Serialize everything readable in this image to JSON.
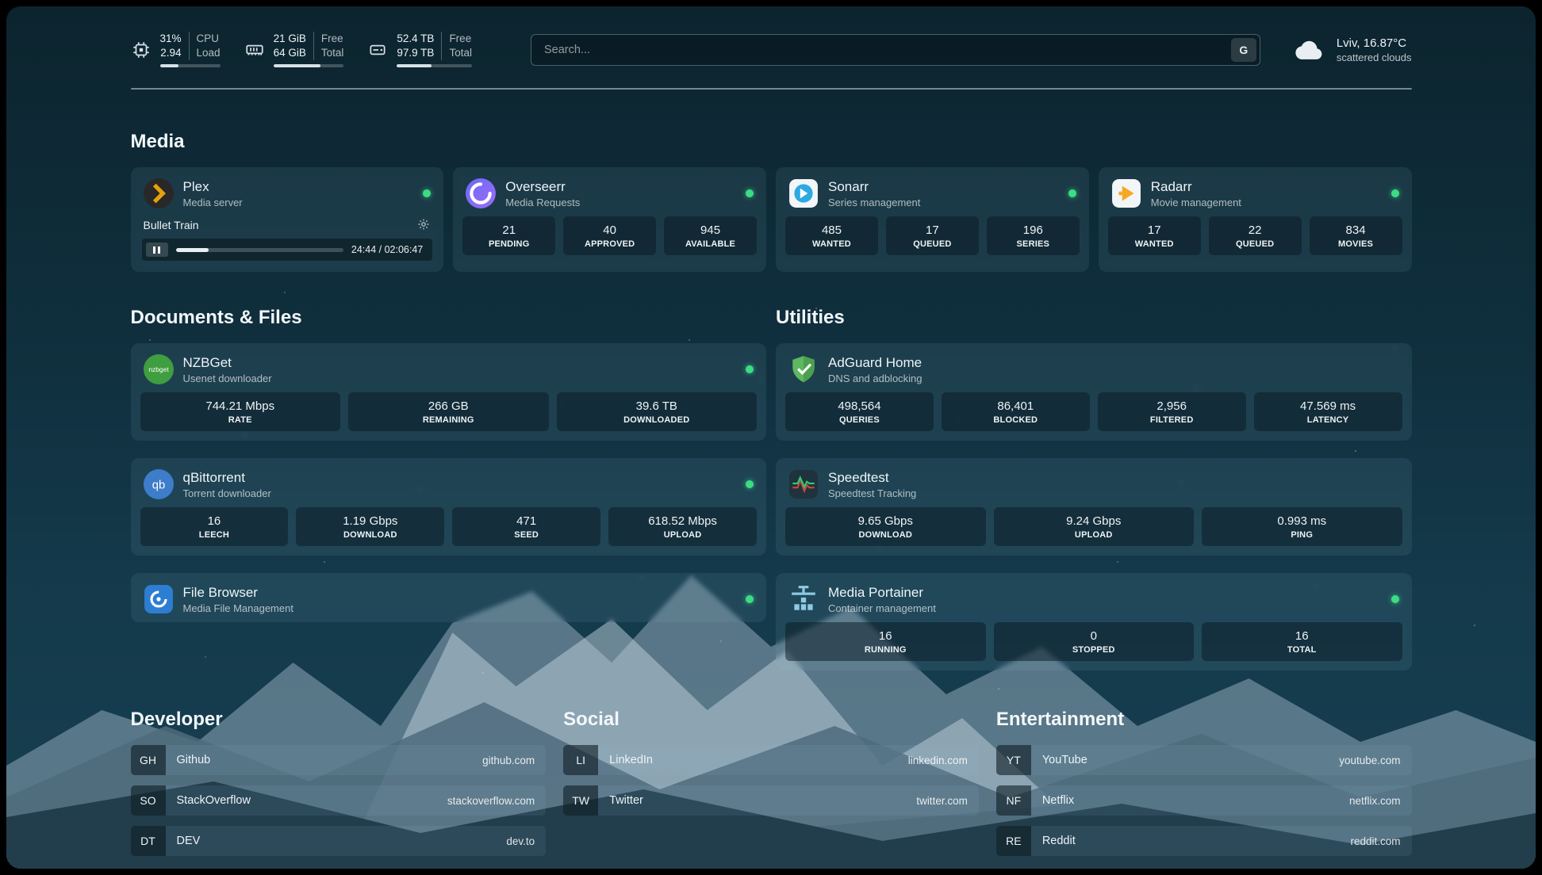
{
  "colors": {
    "status_online": "#3ddc84",
    "plex": "#e5a00d",
    "overseerr": "#7b6cf8",
    "sonarr": "#2ca9e1",
    "radarr": "#f7a823",
    "nzbget": "#3f9e3f",
    "qbittorrent": "#3d7dca",
    "filebrowser": "#2d7dd2",
    "adguard": "#5fb760",
    "speedtest_line": "#2ecc71",
    "portainer": "#8ecae6"
  },
  "header": {
    "cpu": {
      "value1": "31%",
      "value2": "2.94",
      "label1": "CPU",
      "label2": "Load",
      "progress": 31
    },
    "memory": {
      "value1": "21 GiB",
      "value2": "64 GiB",
      "label1": "Free",
      "label2": "Total",
      "progress": 67
    },
    "disk": {
      "value1": "52.4 TB",
      "value2": "97.9 TB",
      "label1": "Free",
      "label2": "Total",
      "progress": 46
    },
    "search": {
      "placeholder": "Search...",
      "button": "G"
    },
    "weather": {
      "location": "Lviv, 16.87°C",
      "condition": "scattered clouds"
    }
  },
  "sections": {
    "media": "Media",
    "documents": "Documents & Files",
    "utilities": "Utilities",
    "developer": "Developer",
    "social": "Social",
    "entertainment": "Entertainment"
  },
  "services": {
    "plex": {
      "name": "Plex",
      "subtitle": "Media server",
      "now_playing": {
        "title": "Bullet Train",
        "time": "24:44 / 02:06:47",
        "progress": 19.5
      }
    },
    "overseerr": {
      "name": "Overseerr",
      "subtitle": "Media Requests",
      "stats": [
        {
          "value": "21",
          "label": "PENDING"
        },
        {
          "value": "40",
          "label": "APPROVED"
        },
        {
          "value": "945",
          "label": "AVAILABLE"
        }
      ]
    },
    "sonarr": {
      "name": "Sonarr",
      "subtitle": "Series management",
      "stats": [
        {
          "value": "485",
          "label": "WANTED"
        },
        {
          "value": "17",
          "label": "QUEUED"
        },
        {
          "value": "196",
          "label": "SERIES"
        }
      ]
    },
    "radarr": {
      "name": "Radarr",
      "subtitle": "Movie management",
      "stats": [
        {
          "value": "17",
          "label": "WANTED"
        },
        {
          "value": "22",
          "label": "QUEUED"
        },
        {
          "value": "834",
          "label": "MOVIES"
        }
      ]
    },
    "nzbget": {
      "name": "NZBGet",
      "subtitle": "Usenet downloader",
      "icon_label": "nzbget",
      "stats": [
        {
          "value": "744.21 Mbps",
          "label": "RATE"
        },
        {
          "value": "266 GB",
          "label": "REMAINING"
        },
        {
          "value": "39.6 TB",
          "label": "DOWNLOADED"
        }
      ]
    },
    "qbittorrent": {
      "name": "qBittorrent",
      "subtitle": "Torrent downloader",
      "icon_label": "qb",
      "stats": [
        {
          "value": "16",
          "label": "LEECH"
        },
        {
          "value": "1.19 Gbps",
          "label": "DOWNLOAD"
        },
        {
          "value": "471",
          "label": "SEED"
        },
        {
          "value": "618.52 Mbps",
          "label": "UPLOAD"
        }
      ]
    },
    "filebrowser": {
      "name": "File Browser",
      "subtitle": "Media File Management"
    },
    "adguard": {
      "name": "AdGuard Home",
      "subtitle": "DNS and adblocking",
      "stats": [
        {
          "value": "498,564",
          "label": "QUERIES"
        },
        {
          "value": "86,401",
          "label": "BLOCKED"
        },
        {
          "value": "2,956",
          "label": "FILTERED"
        },
        {
          "value": "47.569 ms",
          "label": "LATENCY"
        }
      ]
    },
    "speedtest": {
      "name": "Speedtest",
      "subtitle": "Speedtest Tracking",
      "stats": [
        {
          "value": "9.65 Gbps",
          "label": "DOWNLOAD"
        },
        {
          "value": "9.24 Gbps",
          "label": "UPLOAD"
        },
        {
          "value": "0.993 ms",
          "label": "PING"
        }
      ]
    },
    "portainer": {
      "name": "Media Portainer",
      "subtitle": "Container management",
      "stats": [
        {
          "value": "16",
          "label": "RUNNING"
        },
        {
          "value": "0",
          "label": "STOPPED"
        },
        {
          "value": "16",
          "label": "TOTAL"
        }
      ]
    }
  },
  "bookmarks": {
    "developer": [
      {
        "abbr": "GH",
        "name": "Github",
        "domain": "github.com"
      },
      {
        "abbr": "SO",
        "name": "StackOverflow",
        "domain": "stackoverflow.com"
      },
      {
        "abbr": "DT",
        "name": "DEV",
        "domain": "dev.to"
      }
    ],
    "social": [
      {
        "abbr": "LI",
        "name": "LinkedIn",
        "domain": "linkedin.com"
      },
      {
        "abbr": "TW",
        "name": "Twitter",
        "domain": "twitter.com"
      }
    ],
    "entertainment": [
      {
        "abbr": "YT",
        "name": "YouTube",
        "domain": "youtube.com"
      },
      {
        "abbr": "NF",
        "name": "Netflix",
        "domain": "netflix.com"
      },
      {
        "abbr": "RE",
        "name": "Reddit",
        "domain": "reddit.com"
      }
    ]
  }
}
